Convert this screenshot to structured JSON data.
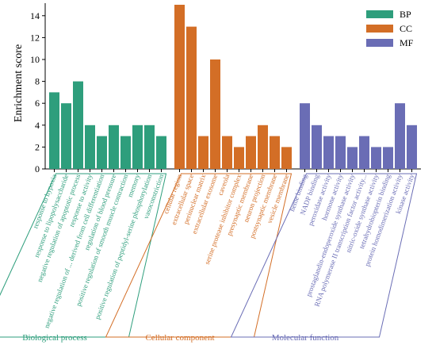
{
  "chart_data": {
    "type": "bar",
    "title": "",
    "xlabel": "",
    "ylabel": "Enrichment score",
    "ylim": [
      0,
      15
    ],
    "yticks": [
      0,
      2,
      4,
      6,
      8,
      10,
      12,
      14
    ],
    "grid": false,
    "legend_position": "top-right",
    "series": [
      {
        "name": "BP",
        "group_label": "Biological process",
        "color": "#2e9e7c",
        "categories": [
          "response to hypoxia",
          "response to lipopolysaccharide",
          "negative regulation of apoptotic process",
          "response to activity",
          "negative regulation of ... derived from cell differentiation",
          "regulation of blood pressure",
          "positive regulation of smooth muscle contraction",
          "memory",
          "positive regulation of peptidyl-serine phosphorylation",
          "vasoconstriction"
        ],
        "values": [
          7,
          6,
          8,
          4,
          3,
          4,
          3,
          4,
          4,
          3
        ]
      },
      {
        "name": "CC",
        "group_label": "Cellular component",
        "color": "#d36e26",
        "categories": [
          "cellular region",
          "extracellular space",
          "perinuclear matrix",
          "extracellular exosome",
          "caveola",
          "serine protease inhibitor complex",
          "presynaptic membrane",
          "neuron projection",
          "postsynaptic membrane",
          "vesicle membrane"
        ],
        "values": [
          15,
          13,
          3,
          10,
          3,
          2,
          3,
          4,
          3,
          2
        ]
      },
      {
        "name": "MF",
        "group_label": "Molecular function",
        "color": "#6a6db5",
        "categories": [
          "heme binding",
          "NADP binding",
          "peroxidase activity",
          "hormone activity",
          "prostaglandin-endoperoxide synthase activity",
          "RNA polymerase II transcription factor activity...",
          "nitric-oxide synthase activity",
          "tetrahydrobiopterin binding",
          "protein homodimerization activity",
          "kinase activity"
        ],
        "values": [
          6,
          4,
          3,
          3,
          2,
          3,
          2,
          2,
          6,
          4
        ]
      }
    ]
  }
}
